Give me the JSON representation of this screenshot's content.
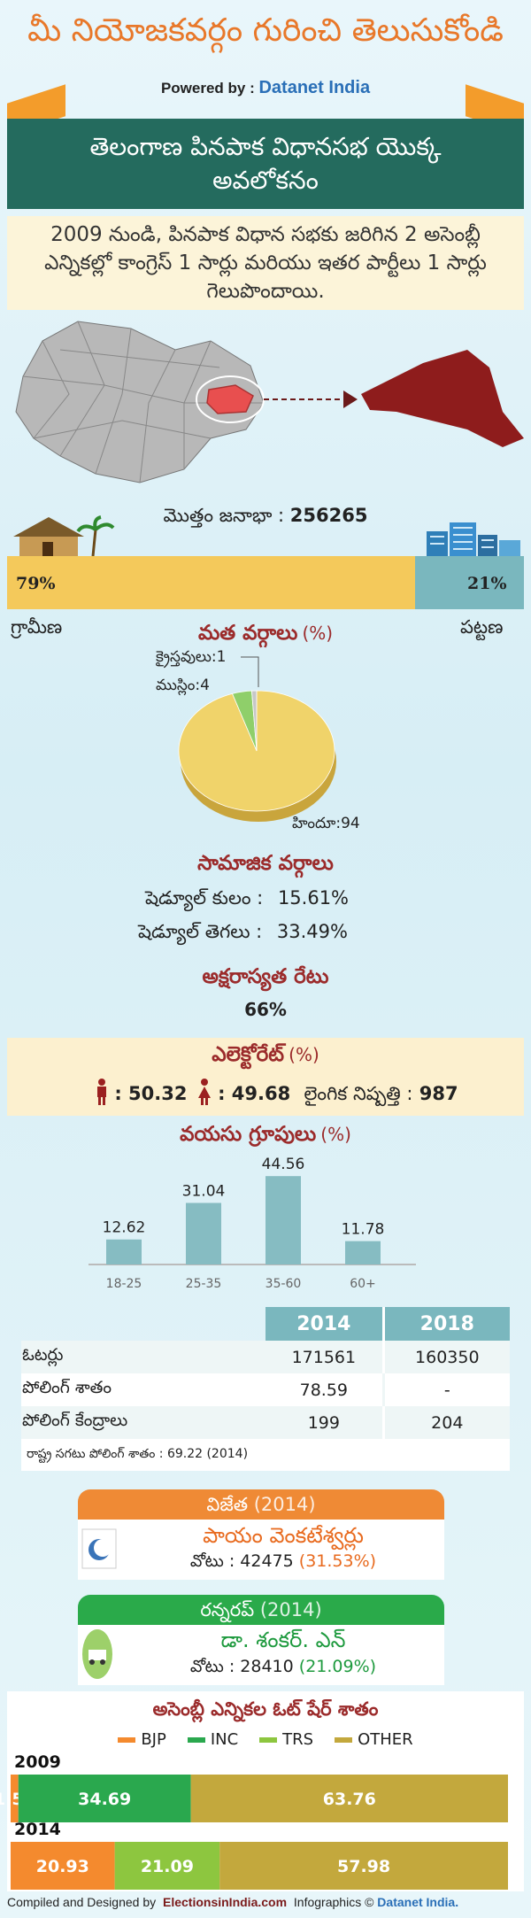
{
  "header": {
    "title": "మీ నియోజకవర్గం గురించి తెలుసుకోండి",
    "powered_by": "Powered by :",
    "brand": "Datanet India"
  },
  "banner": {
    "title": "తెలంగాణ పినపాక విధానసభ యొక్క అవలోకనం"
  },
  "summary": {
    "text": "2009 నుండి, పినపాక విధాన సభకు జరిగిన 2 అసెంబ్లీ ఎన్నికల్లో కాంగ్రెస్ 1 సార్లు మరియు ఇతర పార్టీలు 1 సార్లు గెలుపొందాయి."
  },
  "population": {
    "label": "మొత్తం జనాభా :",
    "total": "256265",
    "rural_pct": "79%",
    "urban_pct": "21%",
    "rural_share": 79,
    "rural_label": "గ్రామీణ",
    "urban_label": "పట్టణ"
  },
  "religion": {
    "title": "మత వర్గాలు",
    "unit": "(%)",
    "slices": [
      {
        "label": "హిందూ:94",
        "value": 94,
        "color": "#f0d36a"
      },
      {
        "label": "ముస్లిం:4",
        "value": 4,
        "color": "#8fcf6a"
      },
      {
        "label": "క్రైస్తవులు:1",
        "value": 1,
        "color": "#c7c7c7"
      }
    ]
  },
  "social": {
    "title": "సామాజిక వర్గాలు",
    "sc_label": "షెడ్యూల్ కులం :",
    "sc_value": "15.61%",
    "st_label": "షెడ్యూల్ తెగలు :",
    "st_value": "33.49%"
  },
  "literacy": {
    "title": "అక్షరాస్యత రేటు",
    "value": "66%"
  },
  "electorate": {
    "title": "ఎలెక్టోరేట్",
    "unit": "(%)",
    "male": ": 50.32",
    "female": ": 49.68",
    "sex_ratio_label": "లైంగిక నిష్పత్తి :",
    "sex_ratio": "987"
  },
  "age": {
    "title": "వయసు గ్రూపులు",
    "unit": "(%)"
  },
  "stats_table": {
    "headers": [
      "2014",
      "2018"
    ],
    "rows": [
      {
        "label": "ఓటర్లు",
        "v2014": "171561",
        "v2018": "160350"
      },
      {
        "label": "పోలింగ్ శాతం",
        "v2014": "78.59",
        "v2018": "-"
      },
      {
        "label": "పోలింగ్ కేంద్రాలు",
        "v2014": "199",
        "v2018": "204"
      }
    ],
    "note": "రాష్ట్ర సగటు పోలింగ్ శాతం : 69.22 (2014)"
  },
  "winner": {
    "title": "విజేత",
    "year": "(2014)",
    "name": "పాయం వెంకటేశ్వర్లు",
    "votes_label": "వోటు : 42475",
    "votes_pct": "(31.53%)",
    "color": "#ef8a35"
  },
  "runnerup": {
    "title": "రన్నరప్",
    "year": "(2014)",
    "name": "డా. శంకర్. ఎన్",
    "votes_label": "వోటు : 28410",
    "votes_pct": "(21.09%)",
    "color": "#2aaa4a"
  },
  "vote_share_title": "అసెంబ్లీ ఎన్నికల ఓట్ షేర్ శాతం",
  "chart_data": [
    {
      "type": "bar",
      "title": "వయసు గ్రూపులు (%)",
      "categories": [
        "18-25",
        "25-35",
        "35-60",
        "60+"
      ],
      "values": [
        12.62,
        31.04,
        44.56,
        11.78
      ],
      "ylim": [
        0,
        50
      ],
      "color": "#86bcc2"
    },
    {
      "type": "bar",
      "stacked": true,
      "orientation": "horizontal",
      "title": "అసెంబ్లీ ఎన్నికల ఓట్ షేర్ శాతం",
      "categories": [
        "2009",
        "2014"
      ],
      "series": [
        {
          "name": "BJP",
          "color": "#f48a2e",
          "values": [
            1.55,
            20.93
          ]
        },
        {
          "name": "INC",
          "color": "#2aa84e",
          "values": [
            34.69,
            0
          ]
        },
        {
          "name": "TRS",
          "color": "#8dc63f",
          "values": [
            0,
            21.09
          ]
        },
        {
          "name": "OTHER",
          "color": "#c3a83d",
          "values": [
            63.76,
            57.98
          ]
        }
      ],
      "legend": "top"
    }
  ],
  "footer": {
    "compiled": "Compiled and Designed by",
    "elections": "ElectionsinIndia.com",
    "infographics": "Infographics ©",
    "datanet": "Datanet India."
  }
}
